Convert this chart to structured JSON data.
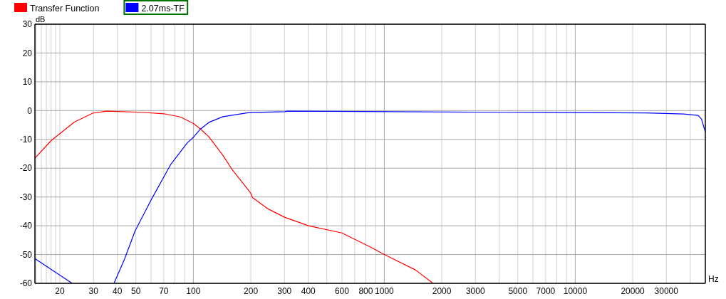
{
  "chart_data": {
    "type": "line",
    "xlabel": "Hz",
    "ylabel": "dB",
    "log": "x",
    "grid": true,
    "legend": "top left",
    "line_style": "solid",
    "marker": "none",
    "xlim": [
      14.8,
      48000
    ],
    "ylim": [
      -60,
      30
    ],
    "xticks": [
      {
        "value": 15,
        "label": null
      },
      {
        "value": 16,
        "label": null
      },
      {
        "value": 17,
        "label": null
      },
      {
        "value": 18,
        "label": null
      },
      {
        "value": 19,
        "label": null
      },
      20,
      30,
      40,
      50,
      {
        "value": 60,
        "label": null
      },
      70,
      {
        "value": 80,
        "label": null
      },
      {
        "value": 90,
        "label": null
      },
      100,
      200,
      300,
      400,
      {
        "value": 500,
        "label": null
      },
      600,
      {
        "value": 700,
        "label": null
      },
      800,
      {
        "value": 900,
        "label": null
      },
      1000,
      2000,
      3000,
      {
        "value": 4000,
        "label": null
      },
      5000,
      {
        "value": 6000,
        "label": null
      },
      7000,
      {
        "value": 8000,
        "label": null
      },
      {
        "value": 9000,
        "label": null
      },
      10000,
      20000,
      30000,
      {
        "value": 40000,
        "label": null
      }
    ],
    "yticks": [
      -60,
      -50,
      -40,
      -30,
      -20,
      -10,
      0,
      10,
      20,
      30
    ],
    "series": [
      {
        "name": "Transfer Function",
        "color": "#ff0000",
        "x": [
          14.8,
          18.1,
          23.8,
          29.7,
          35.2,
          54,
          70,
          85.5,
          100,
          109,
          120.6,
          143,
          158.5,
          199,
          204,
          247,
          302,
          401,
          600,
          846,
          1000,
          1460,
          1800
        ],
        "values": [
          -16.5,
          -10.3,
          -4,
          -0.9,
          -0.2,
          -0.6,
          -1.1,
          -2.2,
          -4.5,
          -6.4,
          -9.1,
          -15.6,
          -20.2,
          -28.5,
          -30.2,
          -34.2,
          -37.1,
          -40,
          -42.5,
          -47.4,
          -50,
          -55.4,
          -60
        ]
      },
      {
        "name": "2.07ms-TF",
        "color": "#0000ff",
        "x": [
          14.8,
          23.2,
          30,
          38.4,
          43.6,
          49.6,
          60.6,
          76.3,
          93,
          100,
          109,
          120.6,
          143,
          196,
          302,
          310,
          4450,
          23500,
          37000,
          44000,
          45800,
          48000
        ],
        "values": [
          -51.4,
          -60,
          null,
          -60,
          -51.6,
          -41.7,
          -30.6,
          -18.6,
          -11.2,
          -9.3,
          -6.4,
          -4.1,
          -2.1,
          -0.7,
          -0.4,
          -0.2,
          -0.6,
          -0.8,
          -1.2,
          -1.7,
          -2.9,
          -7.4
        ]
      }
    ]
  }
}
